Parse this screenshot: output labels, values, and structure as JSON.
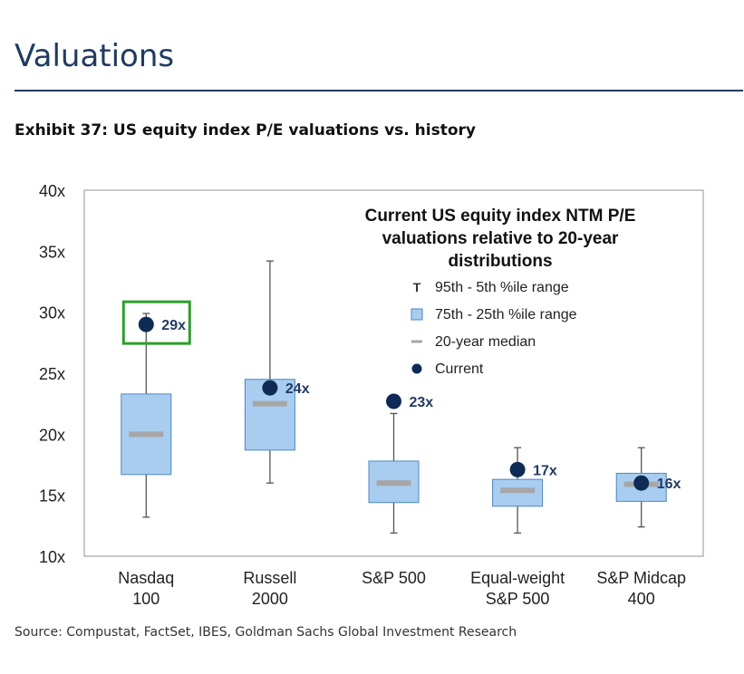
{
  "section_title": "Valuations",
  "exhibit_title": "Exhibit 37: US equity index P/E valuations vs. history",
  "source": "Source: Compustat, FactSet, IBES, Goldman Sachs Global Investment Research",
  "colors": {
    "box_fill": "#a9cdf0",
    "box_stroke": "#4a86c8",
    "median": "#a6a6a6",
    "current": "#0d2b55",
    "highlight": "#2ca02c",
    "whisker": "#555555"
  },
  "chart_data": {
    "type": "boxplot",
    "title": "Current US equity index NTM P/E valuations relative to 20-year distributions",
    "title_lines": [
      "Current US equity index NTM P/E",
      "valuations relative to 20-year",
      "distributions"
    ],
    "ylim": [
      10,
      40
    ],
    "yticks": [
      10,
      15,
      20,
      25,
      30,
      35,
      40
    ],
    "ytick_labels": [
      "10x",
      "15x",
      "20x",
      "25x",
      "30x",
      "35x",
      "40x"
    ],
    "grid": false,
    "legend_placement": "top-right",
    "legend": [
      {
        "symbol": "T",
        "label": "95th - 5th %ile range"
      },
      {
        "symbol": "box",
        "label": "75th - 25th %ile range"
      },
      {
        "symbol": "dash",
        "label": "20-year median"
      },
      {
        "symbol": "dot",
        "label": "Current"
      }
    ],
    "categories": [
      {
        "lines": [
          "Nasdaq",
          "100"
        ],
        "p5": 13.2,
        "p25": 16.7,
        "median": 20.0,
        "p75": 23.3,
        "p95": 29.9,
        "current": 29.0,
        "current_label": "29x",
        "highlighted": true
      },
      {
        "lines": [
          "Russell",
          "2000"
        ],
        "p5": 16.0,
        "p25": 18.7,
        "median": 22.5,
        "p75": 24.5,
        "p95": 34.2,
        "current": 23.8,
        "current_label": "24x",
        "highlighted": false
      },
      {
        "lines": [
          "S&P 500",
          ""
        ],
        "p5": 11.9,
        "p25": 14.4,
        "median": 16.0,
        "p75": 17.8,
        "p95": 21.7,
        "current": 22.7,
        "current_label": "23x",
        "highlighted": false
      },
      {
        "lines": [
          "Equal-weight",
          "S&P 500"
        ],
        "p5": 11.9,
        "p25": 14.1,
        "median": 15.4,
        "p75": 16.3,
        "p95": 18.9,
        "current": 17.1,
        "current_label": "17x",
        "highlighted": false
      },
      {
        "lines": [
          "S&P Midcap",
          "400"
        ],
        "p5": 12.4,
        "p25": 14.5,
        "median": 15.9,
        "p75": 16.8,
        "p95": 18.9,
        "current": 16.0,
        "current_label": "16x",
        "highlighted": false
      }
    ]
  }
}
